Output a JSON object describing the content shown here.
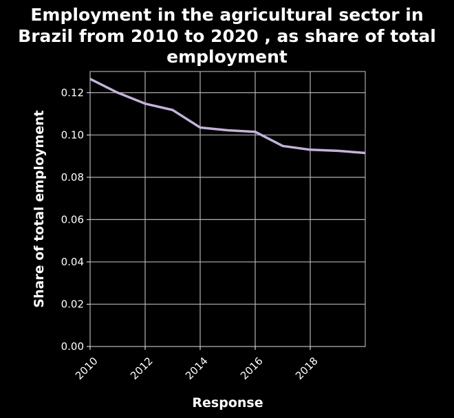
{
  "chart_data": {
    "type": "line",
    "title": "Employment in the agricultural sector in Brazil from 2010 to 2020 , as share of total employment",
    "title_lines": [
      "Employment in the agricultural sector in",
      "Brazil from 2010 to 2020 , as share of total",
      "employment"
    ],
    "xlabel": "Response",
    "ylabel": "Share of total employment",
    "xlim": [
      2010,
      2020
    ],
    "ylim": [
      0.0,
      0.13
    ],
    "x_ticks": [
      2010,
      2012,
      2014,
      2016,
      2018
    ],
    "x_tick_labels": [
      "2010",
      "2012",
      "2014",
      "2016",
      "2018"
    ],
    "y_ticks": [
      0.0,
      0.02,
      0.04,
      0.06,
      0.08,
      0.1,
      0.12
    ],
    "y_tick_labels": [
      "0.00",
      "0.02",
      "0.04",
      "0.06",
      "0.08",
      "0.10",
      "0.12"
    ],
    "grid": true,
    "series": [
      {
        "color": "#c3b3d9",
        "x": [
          2010,
          2011,
          2012,
          2013,
          2014,
          2015,
          2016,
          2017,
          2018,
          2019,
          2020
        ],
        "y": [
          0.1265,
          0.12,
          0.1148,
          0.1118,
          0.1035,
          0.1022,
          0.1015,
          0.0948,
          0.093,
          0.0925,
          0.0915
        ]
      }
    ]
  }
}
